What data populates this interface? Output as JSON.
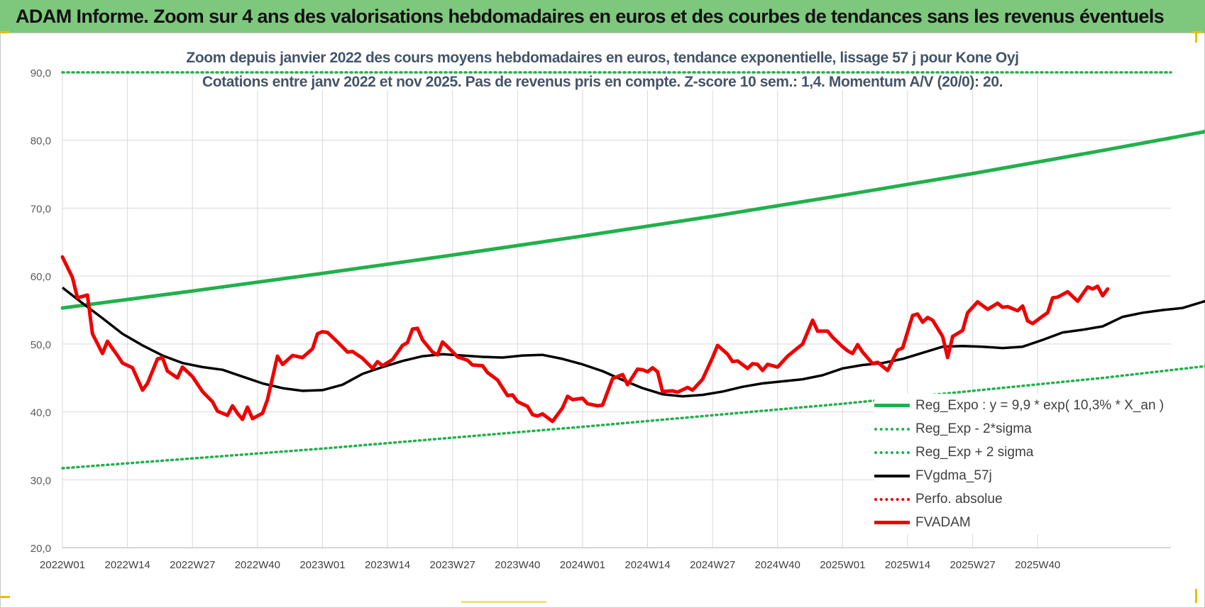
{
  "header": {
    "title": "ADAM Informe. Zoom sur 4 ans des valorisations hebdomadaires en euros et des courbes de tendances sans les revenus éventuels"
  },
  "chart_data": {
    "type": "line",
    "title": "Zoom depuis janvier 2022 des cours moyens hebdomadaires en euros, tendance exponentielle, lissage 57 j pour Kone Oyj",
    "subtitle": "Cotations entre janv 2022 et nov 2025. Pas de revenus pris en compte. Z-score 10 sem.: 1,4. Momentum A/V (20/0): 20.",
    "ylim": [
      20,
      90
    ],
    "yticks": [
      "20,0",
      "30,0",
      "40,0",
      "50,0",
      "60,0",
      "70,0",
      "80,0",
      "90,0"
    ],
    "yticks_values": [
      20,
      30,
      40,
      50,
      60,
      70,
      80,
      90
    ],
    "xticks": [
      "2022W01",
      "2022W14",
      "2022W27",
      "2022W40",
      "2023W01",
      "2023W14",
      "2023W27",
      "2023W40",
      "2024W01",
      "2024W14",
      "2024W27",
      "2024W40",
      "2025W01",
      "2025W14",
      "2025W27",
      "2025W40"
    ],
    "x_weeks_total": 204,
    "grid": "vertical and horizontal",
    "legend_position": "bottom-right",
    "series": [
      {
        "name": "Reg_Expo : y = 9,9 * exp( 10,3% * X_an )",
        "color": "#22b04c",
        "style": "solid-thick",
        "points": [
          [
            0,
            55.3
          ],
          [
            26,
            57.8
          ],
          [
            52,
            60.4
          ],
          [
            78,
            63.1
          ],
          [
            104,
            65.9
          ],
          [
            130,
            68.8
          ],
          [
            156,
            71.9
          ],
          [
            182,
            75.1
          ],
          [
            208,
            78.5
          ],
          [
            228,
            81.2
          ],
          [
            234,
            82.7
          ]
        ]
      },
      {
        "name": "Reg_Exp - 2*sigma",
        "color": "#22b04c",
        "style": "dotted",
        "points": [
          [
            0,
            31.7
          ],
          [
            52,
            34.6
          ],
          [
            104,
            37.8
          ],
          [
            156,
            41.2
          ],
          [
            208,
            45.0
          ],
          [
            234,
            47.2
          ]
        ]
      },
      {
        "name": "Reg_Exp + 2 sigma",
        "color": "#22b04c",
        "style": "dotted",
        "points": [
          [
            0,
            90
          ],
          [
            234,
            90
          ]
        ]
      },
      {
        "name": "FVgdma_57j",
        "color": "#000000",
        "style": "solid",
        "points": [
          [
            0,
            58.3
          ],
          [
            4,
            56.0
          ],
          [
            8,
            53.8
          ],
          [
            12,
            51.5
          ],
          [
            16,
            49.8
          ],
          [
            20,
            48.3
          ],
          [
            24,
            47.2
          ],
          [
            28,
            46.6
          ],
          [
            32,
            46.2
          ],
          [
            36,
            45.2
          ],
          [
            40,
            44.2
          ],
          [
            44,
            43.5
          ],
          [
            48,
            43.1
          ],
          [
            52,
            43.2
          ],
          [
            56,
            44.0
          ],
          [
            60,
            45.6
          ],
          [
            64,
            46.6
          ],
          [
            68,
            47.5
          ],
          [
            72,
            48.2
          ],
          [
            76,
            48.5
          ],
          [
            80,
            48.3
          ],
          [
            84,
            48.1
          ],
          [
            88,
            48.0
          ],
          [
            92,
            48.3
          ],
          [
            96,
            48.4
          ],
          [
            100,
            47.8
          ],
          [
            104,
            47.0
          ],
          [
            108,
            46.0
          ],
          [
            112,
            44.7
          ],
          [
            116,
            43.5
          ],
          [
            120,
            42.6
          ],
          [
            124,
            42.3
          ],
          [
            128,
            42.5
          ],
          [
            132,
            43.0
          ],
          [
            136,
            43.7
          ],
          [
            140,
            44.2
          ],
          [
            144,
            44.5
          ],
          [
            148,
            44.8
          ],
          [
            152,
            45.4
          ],
          [
            156,
            46.4
          ],
          [
            160,
            46.9
          ],
          [
            164,
            47.2
          ],
          [
            168,
            47.8
          ],
          [
            172,
            48.7
          ],
          [
            176,
            49.6
          ],
          [
            180,
            49.7
          ],
          [
            184,
            49.6
          ],
          [
            188,
            49.4
          ],
          [
            192,
            49.6
          ],
          [
            196,
            50.6
          ],
          [
            200,
            51.7
          ],
          [
            204,
            52.1
          ],
          [
            208,
            52.6
          ],
          [
            212,
            54.0
          ],
          [
            216,
            54.6
          ],
          [
            220,
            55.0
          ],
          [
            224,
            55.3
          ],
          [
            228,
            56.2
          ],
          [
            232,
            57.0
          ],
          [
            236,
            57.5
          ]
        ]
      },
      {
        "name": "Perfo. absolue",
        "color": "#e60000",
        "style": "dotted",
        "points": []
      },
      {
        "name": "FVADAM",
        "color": "#ee0000",
        "style": "solid-thick",
        "points": [
          [
            0,
            62.8
          ],
          [
            2,
            59.8
          ],
          [
            3,
            56.8
          ],
          [
            5,
            57.2
          ],
          [
            6,
            51.5
          ],
          [
            8,
            48.6
          ],
          [
            9,
            50.4
          ],
          [
            11,
            48.3
          ],
          [
            12,
            47.2
          ],
          [
            14,
            46.5
          ],
          [
            16,
            43.2
          ],
          [
            17,
            44.2
          ],
          [
            19,
            47.8
          ],
          [
            20,
            48.0
          ],
          [
            21,
            46.0
          ],
          [
            23,
            45.0
          ],
          [
            24,
            46.6
          ],
          [
            26,
            45.2
          ],
          [
            28,
            43.0
          ],
          [
            30,
            41.5
          ],
          [
            31,
            40.1
          ],
          [
            33,
            39.5
          ],
          [
            34,
            40.9
          ],
          [
            35,
            39.8
          ],
          [
            36,
            38.9
          ],
          [
            37,
            40.7
          ],
          [
            38,
            39.0
          ],
          [
            40,
            39.8
          ],
          [
            41,
            41.8
          ],
          [
            43,
            48.2
          ],
          [
            44,
            47.0
          ],
          [
            46,
            48.3
          ],
          [
            48,
            48.0
          ],
          [
            50,
            49.3
          ],
          [
            51,
            51.5
          ],
          [
            52,
            51.8
          ],
          [
            53,
            51.7
          ],
          [
            55,
            50.3
          ],
          [
            57,
            48.8
          ],
          [
            58,
            48.9
          ],
          [
            60,
            47.9
          ],
          [
            62,
            46.4
          ],
          [
            63,
            47.4
          ],
          [
            64,
            46.8
          ],
          [
            66,
            47.7
          ],
          [
            68,
            49.8
          ],
          [
            69,
            50.2
          ],
          [
            70,
            52.2
          ],
          [
            71,
            52.3
          ],
          [
            72,
            50.6
          ],
          [
            74,
            48.8
          ],
          [
            75,
            48.4
          ],
          [
            76,
            50.3
          ],
          [
            77,
            49.6
          ],
          [
            79,
            48.1
          ],
          [
            81,
            47.6
          ],
          [
            82,
            46.9
          ],
          [
            84,
            46.8
          ],
          [
            85,
            45.8
          ],
          [
            87,
            44.7
          ],
          [
            89,
            42.4
          ],
          [
            90,
            42.5
          ],
          [
            91,
            41.5
          ],
          [
            93,
            40.8
          ],
          [
            94,
            39.6
          ],
          [
            95,
            39.4
          ],
          [
            96,
            39.7
          ],
          [
            98,
            38.6
          ],
          [
            100,
            40.6
          ],
          [
            101,
            42.3
          ],
          [
            102,
            41.8
          ],
          [
            104,
            42.0
          ],
          [
            105,
            41.2
          ],
          [
            107,
            40.9
          ],
          [
            108,
            41.0
          ],
          [
            110,
            44.9
          ],
          [
            112,
            45.5
          ],
          [
            113,
            44.0
          ],
          [
            115,
            46.3
          ],
          [
            116,
            46.2
          ],
          [
            117,
            45.9
          ],
          [
            118,
            46.5
          ],
          [
            119,
            45.9
          ],
          [
            120,
            43.0
          ],
          [
            122,
            43.1
          ],
          [
            123,
            42.9
          ],
          [
            125,
            43.6
          ],
          [
            126,
            43.2
          ],
          [
            128,
            44.8
          ],
          [
            130,
            48.0
          ],
          [
            131,
            49.8
          ],
          [
            133,
            48.5
          ],
          [
            134,
            47.4
          ],
          [
            135,
            47.5
          ],
          [
            137,
            46.4
          ],
          [
            138,
            47.1
          ],
          [
            139,
            47.0
          ],
          [
            140,
            46.1
          ],
          [
            141,
            47.0
          ],
          [
            143,
            46.6
          ],
          [
            145,
            48.2
          ],
          [
            147,
            49.4
          ],
          [
            148,
            50.0
          ],
          [
            150,
            53.5
          ],
          [
            151,
            51.9
          ],
          [
            152,
            51.9
          ],
          [
            153,
            51.9
          ],
          [
            154,
            51.0
          ],
          [
            156,
            49.6
          ],
          [
            157,
            49.0
          ],
          [
            158,
            48.6
          ],
          [
            159,
            49.9
          ],
          [
            160,
            48.8
          ],
          [
            162,
            47.1
          ],
          [
            163,
            47.3
          ],
          [
            165,
            46.1
          ],
          [
            167,
            49.1
          ],
          [
            168,
            49.4
          ],
          [
            170,
            54.2
          ],
          [
            171,
            54.4
          ],
          [
            172,
            53.2
          ],
          [
            173,
            53.9
          ],
          [
            174,
            53.5
          ],
          [
            176,
            51.1
          ],
          [
            177,
            48.0
          ],
          [
            178,
            51.1
          ],
          [
            180,
            52.0
          ],
          [
            181,
            54.6
          ],
          [
            183,
            56.2
          ],
          [
            185,
            55.1
          ],
          [
            187,
            56.0
          ],
          [
            188,
            55.4
          ],
          [
            189,
            55.5
          ],
          [
            191,
            54.9
          ],
          [
            192,
            55.6
          ],
          [
            193,
            53.4
          ],
          [
            194,
            53.0
          ],
          [
            196,
            54.1
          ],
          [
            197,
            54.6
          ],
          [
            198,
            56.8
          ],
          [
            199,
            56.9
          ],
          [
            201,
            57.7
          ],
          [
            203,
            56.3
          ],
          [
            205,
            58.4
          ],
          [
            206,
            58.1
          ],
          [
            207,
            58.5
          ],
          [
            208,
            57.1
          ],
          [
            209,
            58.1
          ]
        ]
      }
    ]
  }
}
